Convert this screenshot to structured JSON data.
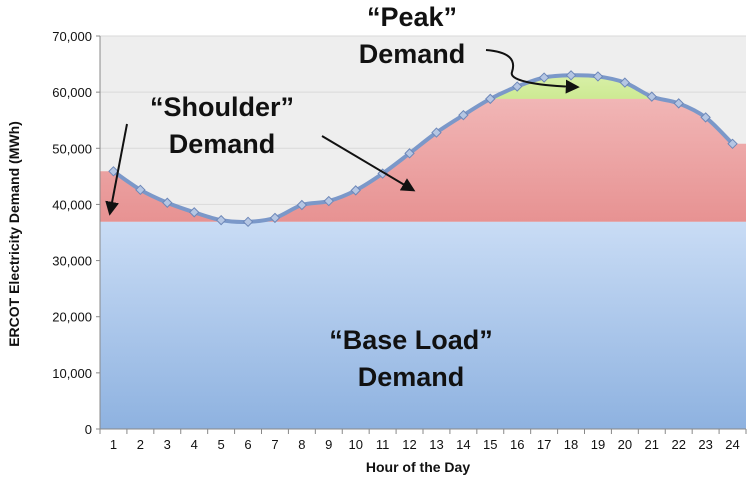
{
  "chart_data": {
    "type": "line",
    "xlabel": "Hour of the Day",
    "ylabel": "ERCOT Electricity Demand (MWh)",
    "x": [
      1,
      2,
      3,
      4,
      5,
      6,
      7,
      8,
      9,
      10,
      11,
      12,
      13,
      14,
      15,
      16,
      17,
      18,
      19,
      20,
      21,
      22,
      23,
      24
    ],
    "xlim": [
      0.5,
      24.5
    ],
    "ylim": [
      0,
      70000
    ],
    "yticks": [
      0,
      10000,
      20000,
      30000,
      40000,
      50000,
      60000,
      70000
    ],
    "ytick_labels": [
      "0",
      "10,000",
      "20,000",
      "30,000",
      "40,000",
      "50,000",
      "60,000",
      "70,000"
    ],
    "xtick_labels": [
      "1",
      "2",
      "3",
      "4",
      "5",
      "6",
      "7",
      "8",
      "9",
      "10",
      "11",
      "12",
      "13",
      "14",
      "15",
      "16",
      "17",
      "18",
      "19",
      "20",
      "21",
      "22",
      "23",
      "24"
    ],
    "grid": true,
    "series": [
      {
        "values": [
          45900,
          42600,
          40300,
          38600,
          37200,
          36900,
          37600,
          39900,
          40600,
          42500,
          45500,
          49100,
          52800,
          55900,
          58800,
          61000,
          62600,
          63000,
          62800,
          61700,
          59200,
          58000,
          55500,
          50800
        ]
      }
    ],
    "band_levels": {
      "base": 36900,
      "shoulder_top": 58800
    },
    "annotations": {
      "peak": [
        "“Peak”",
        "Demand"
      ],
      "shoulder": [
        "“Shoulder”",
        "Demand"
      ],
      "base": [
        "“Base Load”",
        "Demand"
      ]
    }
  },
  "colors": {
    "background": "#ffffff",
    "plot_bg": "#eeeeee",
    "gridline": "#d9d9d9",
    "base_top": "#c9dcf5",
    "base_bottom": "#8eb2e0",
    "shoulder_top": "#f6c8c8",
    "shoulder_bottom": "#e79292",
    "peak_top": "#eaf7c8",
    "peak_bottom": "#cdea93",
    "line": "#7b98c9",
    "line_dark": "#5a3e78",
    "marker": "#b5c6e3",
    "marker_stroke": "#6d87b8"
  }
}
